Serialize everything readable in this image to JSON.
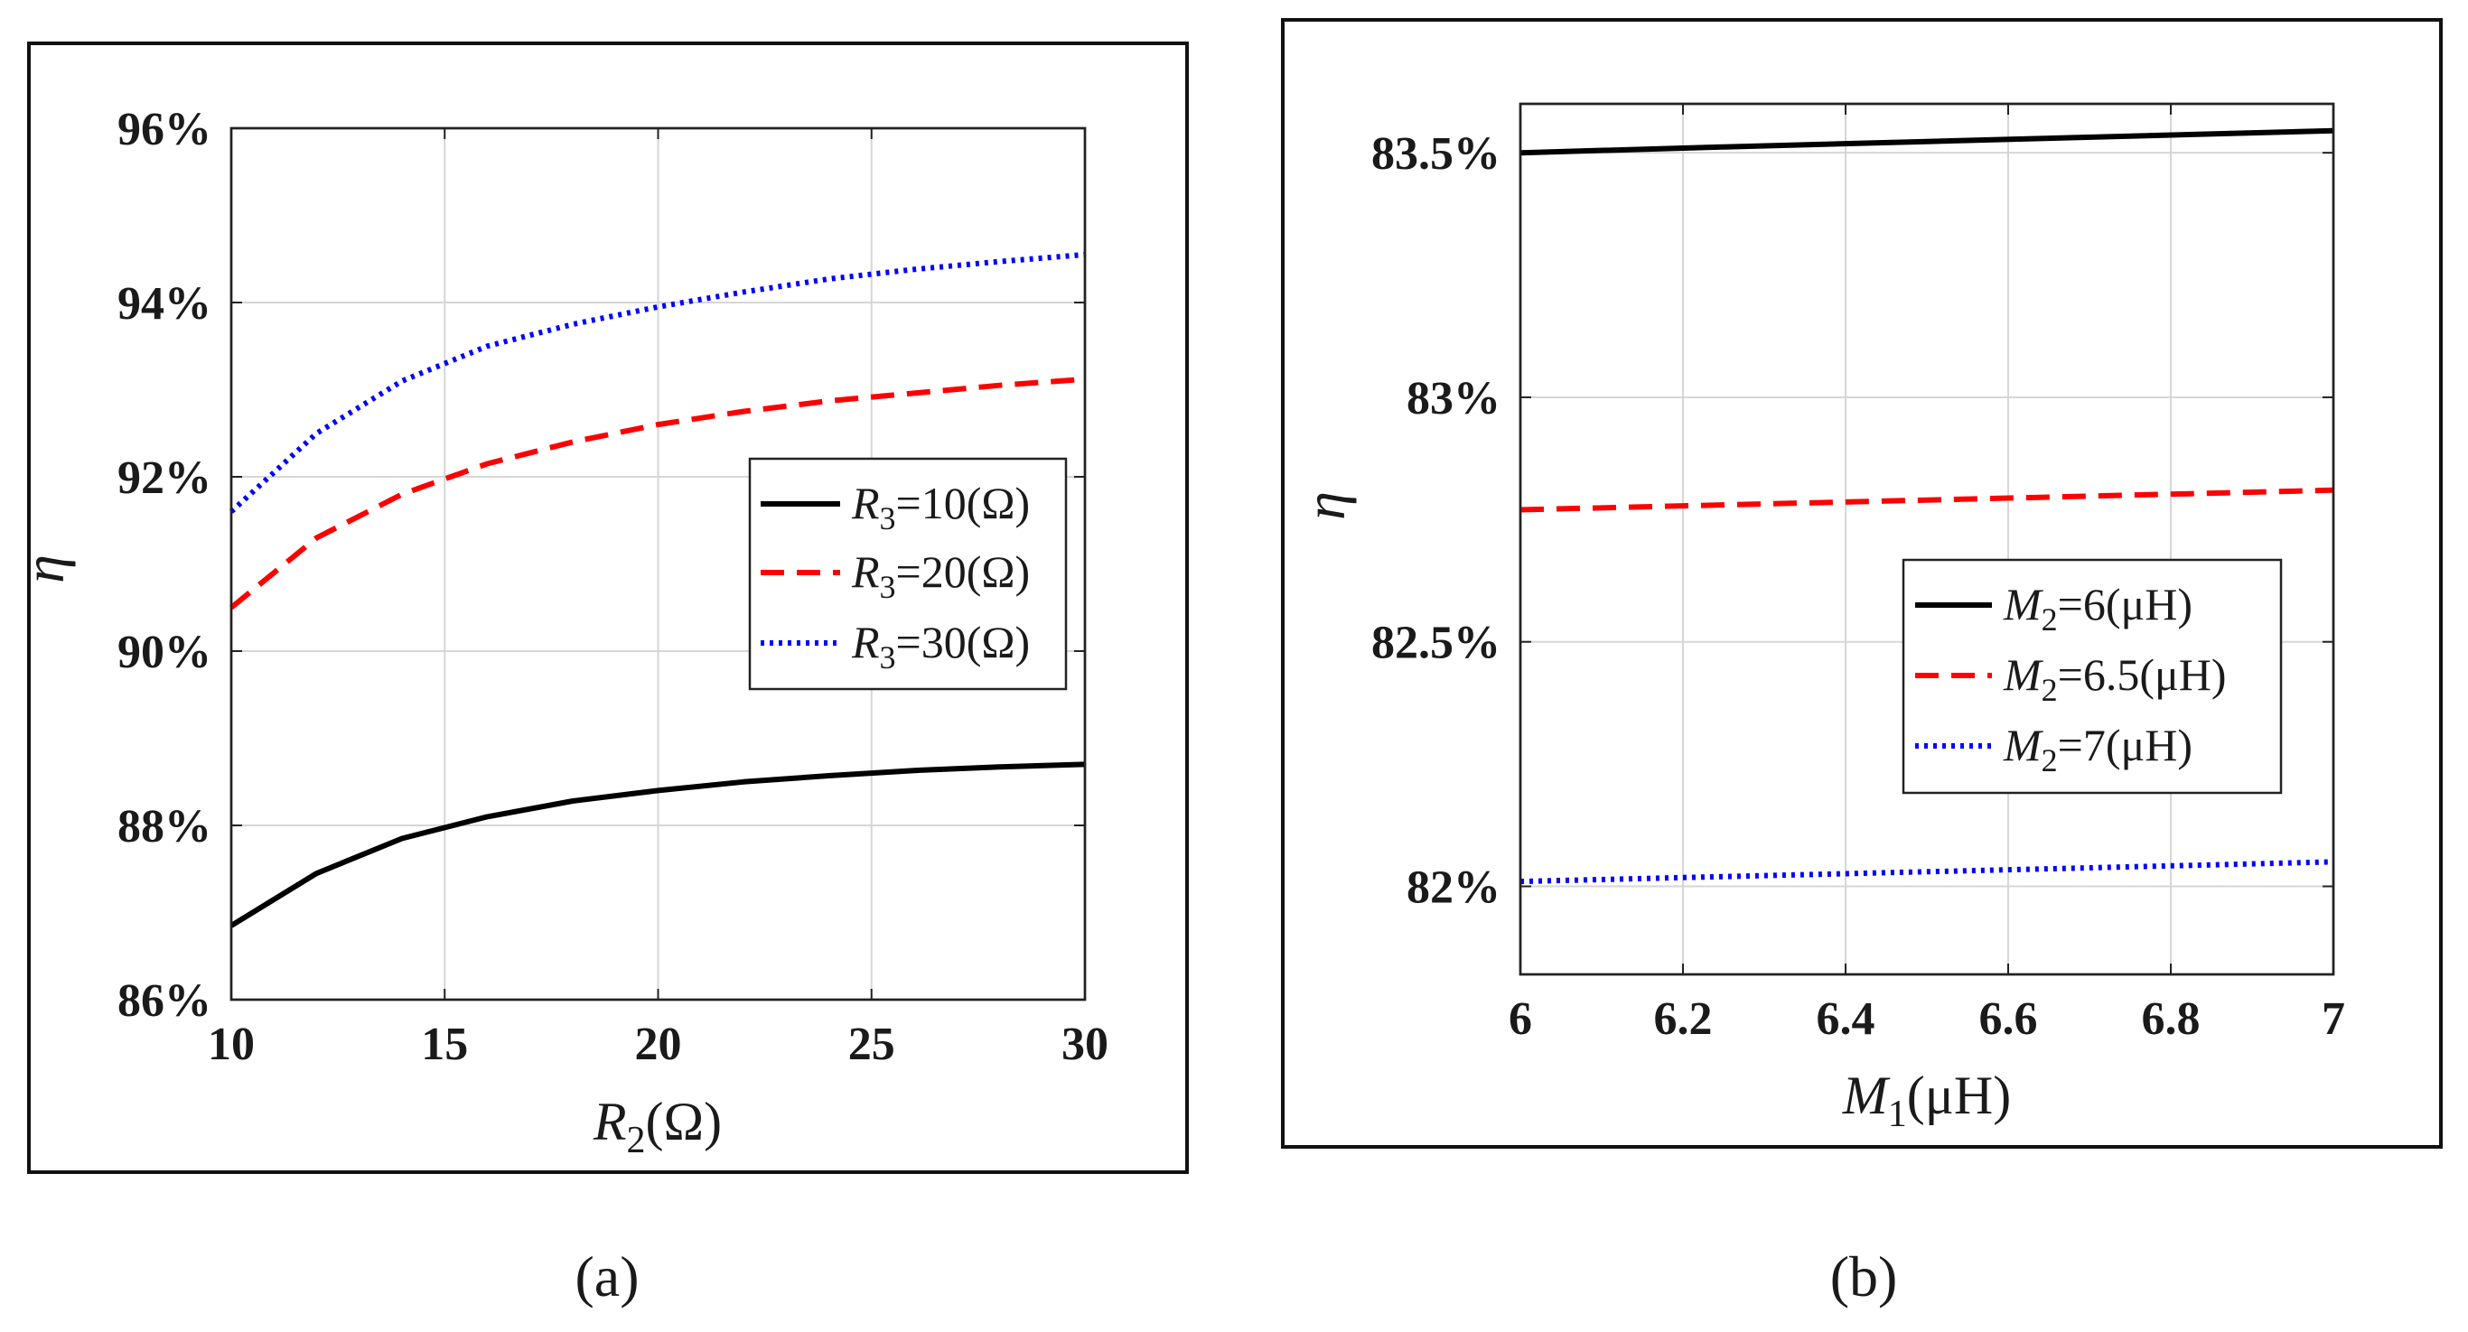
{
  "chart_data": [
    {
      "type": "line",
      "panel": "(a)",
      "xlabel": "R2(Ω)",
      "xlabel_main": "R",
      "xlabel_sub": "2",
      "xlabel_unit": "(Ω)",
      "ylabel": "η",
      "xlim": [
        10,
        30
      ],
      "ylim": [
        86,
        96
      ],
      "xticks": [
        10,
        15,
        20,
        25,
        30
      ],
      "yticks": [
        86,
        88,
        90,
        92,
        94,
        96
      ],
      "xtick_labels": [
        "10",
        "15",
        "20",
        "25",
        "30"
      ],
      "ytick_labels": [
        "86%",
        "88%",
        "90%",
        "92%",
        "94%",
        "96%"
      ],
      "grid": true,
      "legend_position": "center-right",
      "x": [
        10,
        12,
        14,
        16,
        18,
        20,
        22,
        24,
        26,
        28,
        30
      ],
      "series": [
        {
          "name": "R3=10(Ω)",
          "label_main": "R",
          "label_sub": "3",
          "label_rest": "=10(Ω)",
          "color": "#000000",
          "style": "solid",
          "values": [
            86.85,
            87.45,
            87.85,
            88.1,
            88.28,
            88.4,
            88.5,
            88.57,
            88.63,
            88.67,
            88.7
          ]
        },
        {
          "name": "R3=20(Ω)",
          "label_main": "R",
          "label_sub": "3",
          "label_rest": "=20(Ω)",
          "color": "#ff0000",
          "style": "dashed",
          "values": [
            90.5,
            91.3,
            91.8,
            92.15,
            92.4,
            92.6,
            92.75,
            92.87,
            92.96,
            93.05,
            93.12
          ]
        },
        {
          "name": "R3=30(Ω)",
          "label_main": "R",
          "label_sub": "3",
          "label_rest": "=30(Ω)",
          "color": "#0000ff",
          "style": "dotted",
          "values": [
            91.6,
            92.5,
            93.1,
            93.5,
            93.75,
            93.95,
            94.12,
            94.27,
            94.38,
            94.47,
            94.55
          ]
        }
      ]
    },
    {
      "type": "line",
      "panel": "(b)",
      "xlabel": "M1(μH)",
      "xlabel_main": "M",
      "xlabel_sub": "1",
      "xlabel_unit": "(μH)",
      "ylabel": "η",
      "xlim": [
        6,
        7
      ],
      "ylim": [
        81.82,
        83.6
      ],
      "xticks": [
        6,
        6.2,
        6.4,
        6.6,
        6.8,
        7
      ],
      "yticks": [
        82,
        82.5,
        83,
        83.5
      ],
      "xtick_labels": [
        "6",
        "6.2",
        "6.4",
        "6.6",
        "6.8",
        "7"
      ],
      "ytick_labels": [
        "82%",
        "82.5%",
        "83%",
        "83.5%"
      ],
      "grid": true,
      "legend_position": "center-right",
      "x": [
        6,
        6.25,
        6.5,
        6.75,
        7
      ],
      "series": [
        {
          "name": "M2=6(μH)",
          "label_main": "M",
          "label_sub": "2",
          "label_rest": "=6(μH)",
          "color": "#000000",
          "style": "solid",
          "values": [
            83.5,
            83.512,
            83.523,
            83.534,
            83.545
          ]
        },
        {
          "name": "M2=6.5(μH)",
          "label_main": "M",
          "label_sub": "2",
          "label_rest": "=6.5(μH)",
          "color": "#ff0000",
          "style": "dashed",
          "values": [
            82.77,
            82.78,
            82.79,
            82.8,
            82.81
          ]
        },
        {
          "name": "M2=7(μH)",
          "label_main": "M",
          "label_sub": "2",
          "label_rest": "=7(μH)",
          "color": "#0000ff",
          "style": "dotted",
          "values": [
            82.01,
            82.02,
            82.03,
            82.04,
            82.05
          ]
        }
      ]
    }
  ],
  "captions": {
    "a": "(a)",
    "b": "(b)"
  }
}
